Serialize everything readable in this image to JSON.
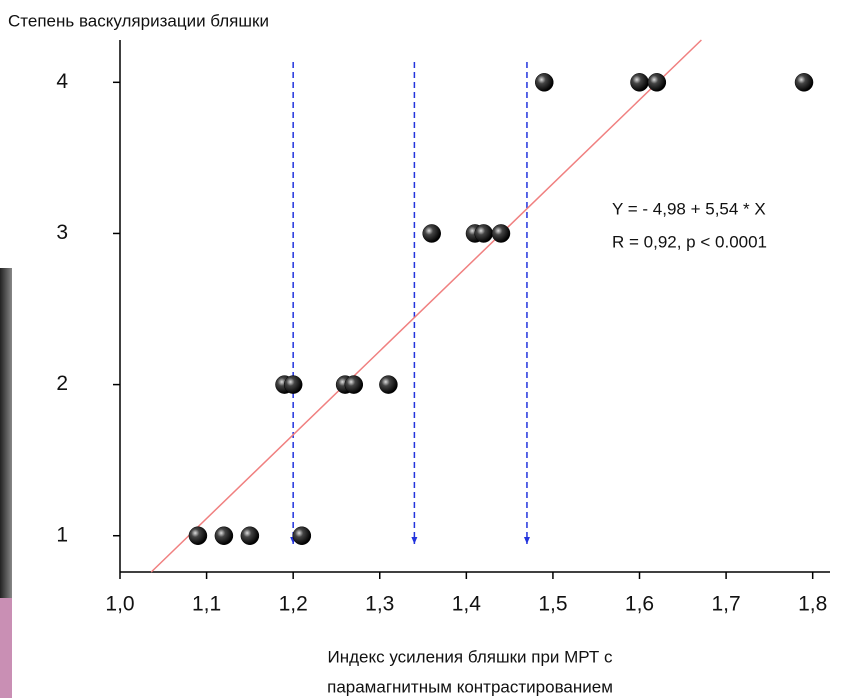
{
  "chart_data": {
    "type": "scatter",
    "ylabel": "Степень васкуляризации бляшки",
    "xlabel": [
      "Индекс усиления бляшки при МРТ с",
      "парамагнитным контрастированием"
    ],
    "annotations": [
      "Y = - 4,98 + 5,54 * X",
      "R = 0,92, p < 0.0001"
    ],
    "x": [
      1.09,
      1.12,
      1.15,
      1.21,
      1.19,
      1.2,
      1.26,
      1.27,
      1.31,
      1.36,
      1.41,
      1.42,
      1.44,
      1.49,
      1.6,
      1.62,
      1.79
    ],
    "values": [
      1,
      1,
      1,
      1,
      2,
      2,
      2,
      2,
      2,
      3,
      3,
      3,
      3,
      4,
      4,
      4,
      4
    ],
    "color": "#000000",
    "regression": {
      "intercept": -4.98,
      "slope": 5.54,
      "color": "#f08080"
    },
    "thresholds": [
      1.2,
      1.34,
      1.47
    ],
    "threshold_color": "#2233dd",
    "xlim": [
      1.0,
      1.82
    ],
    "ylim": [
      0.76,
      4.28
    ],
    "xticks": [
      {
        "value": 1.0,
        "label": "1,0"
      },
      {
        "value": 1.1,
        "label": "1,1"
      },
      {
        "value": 1.2,
        "label": "1,2"
      },
      {
        "value": 1.3,
        "label": "1,3"
      },
      {
        "value": 1.4,
        "label": "1,4"
      },
      {
        "value": 1.5,
        "label": "1,5"
      },
      {
        "value": 1.6,
        "label": "1,6"
      },
      {
        "value": 1.7,
        "label": "1,7"
      },
      {
        "value": 1.8,
        "label": "1,8"
      }
    ],
    "yticks": [
      1,
      2,
      3,
      4
    ],
    "grid": false
  }
}
